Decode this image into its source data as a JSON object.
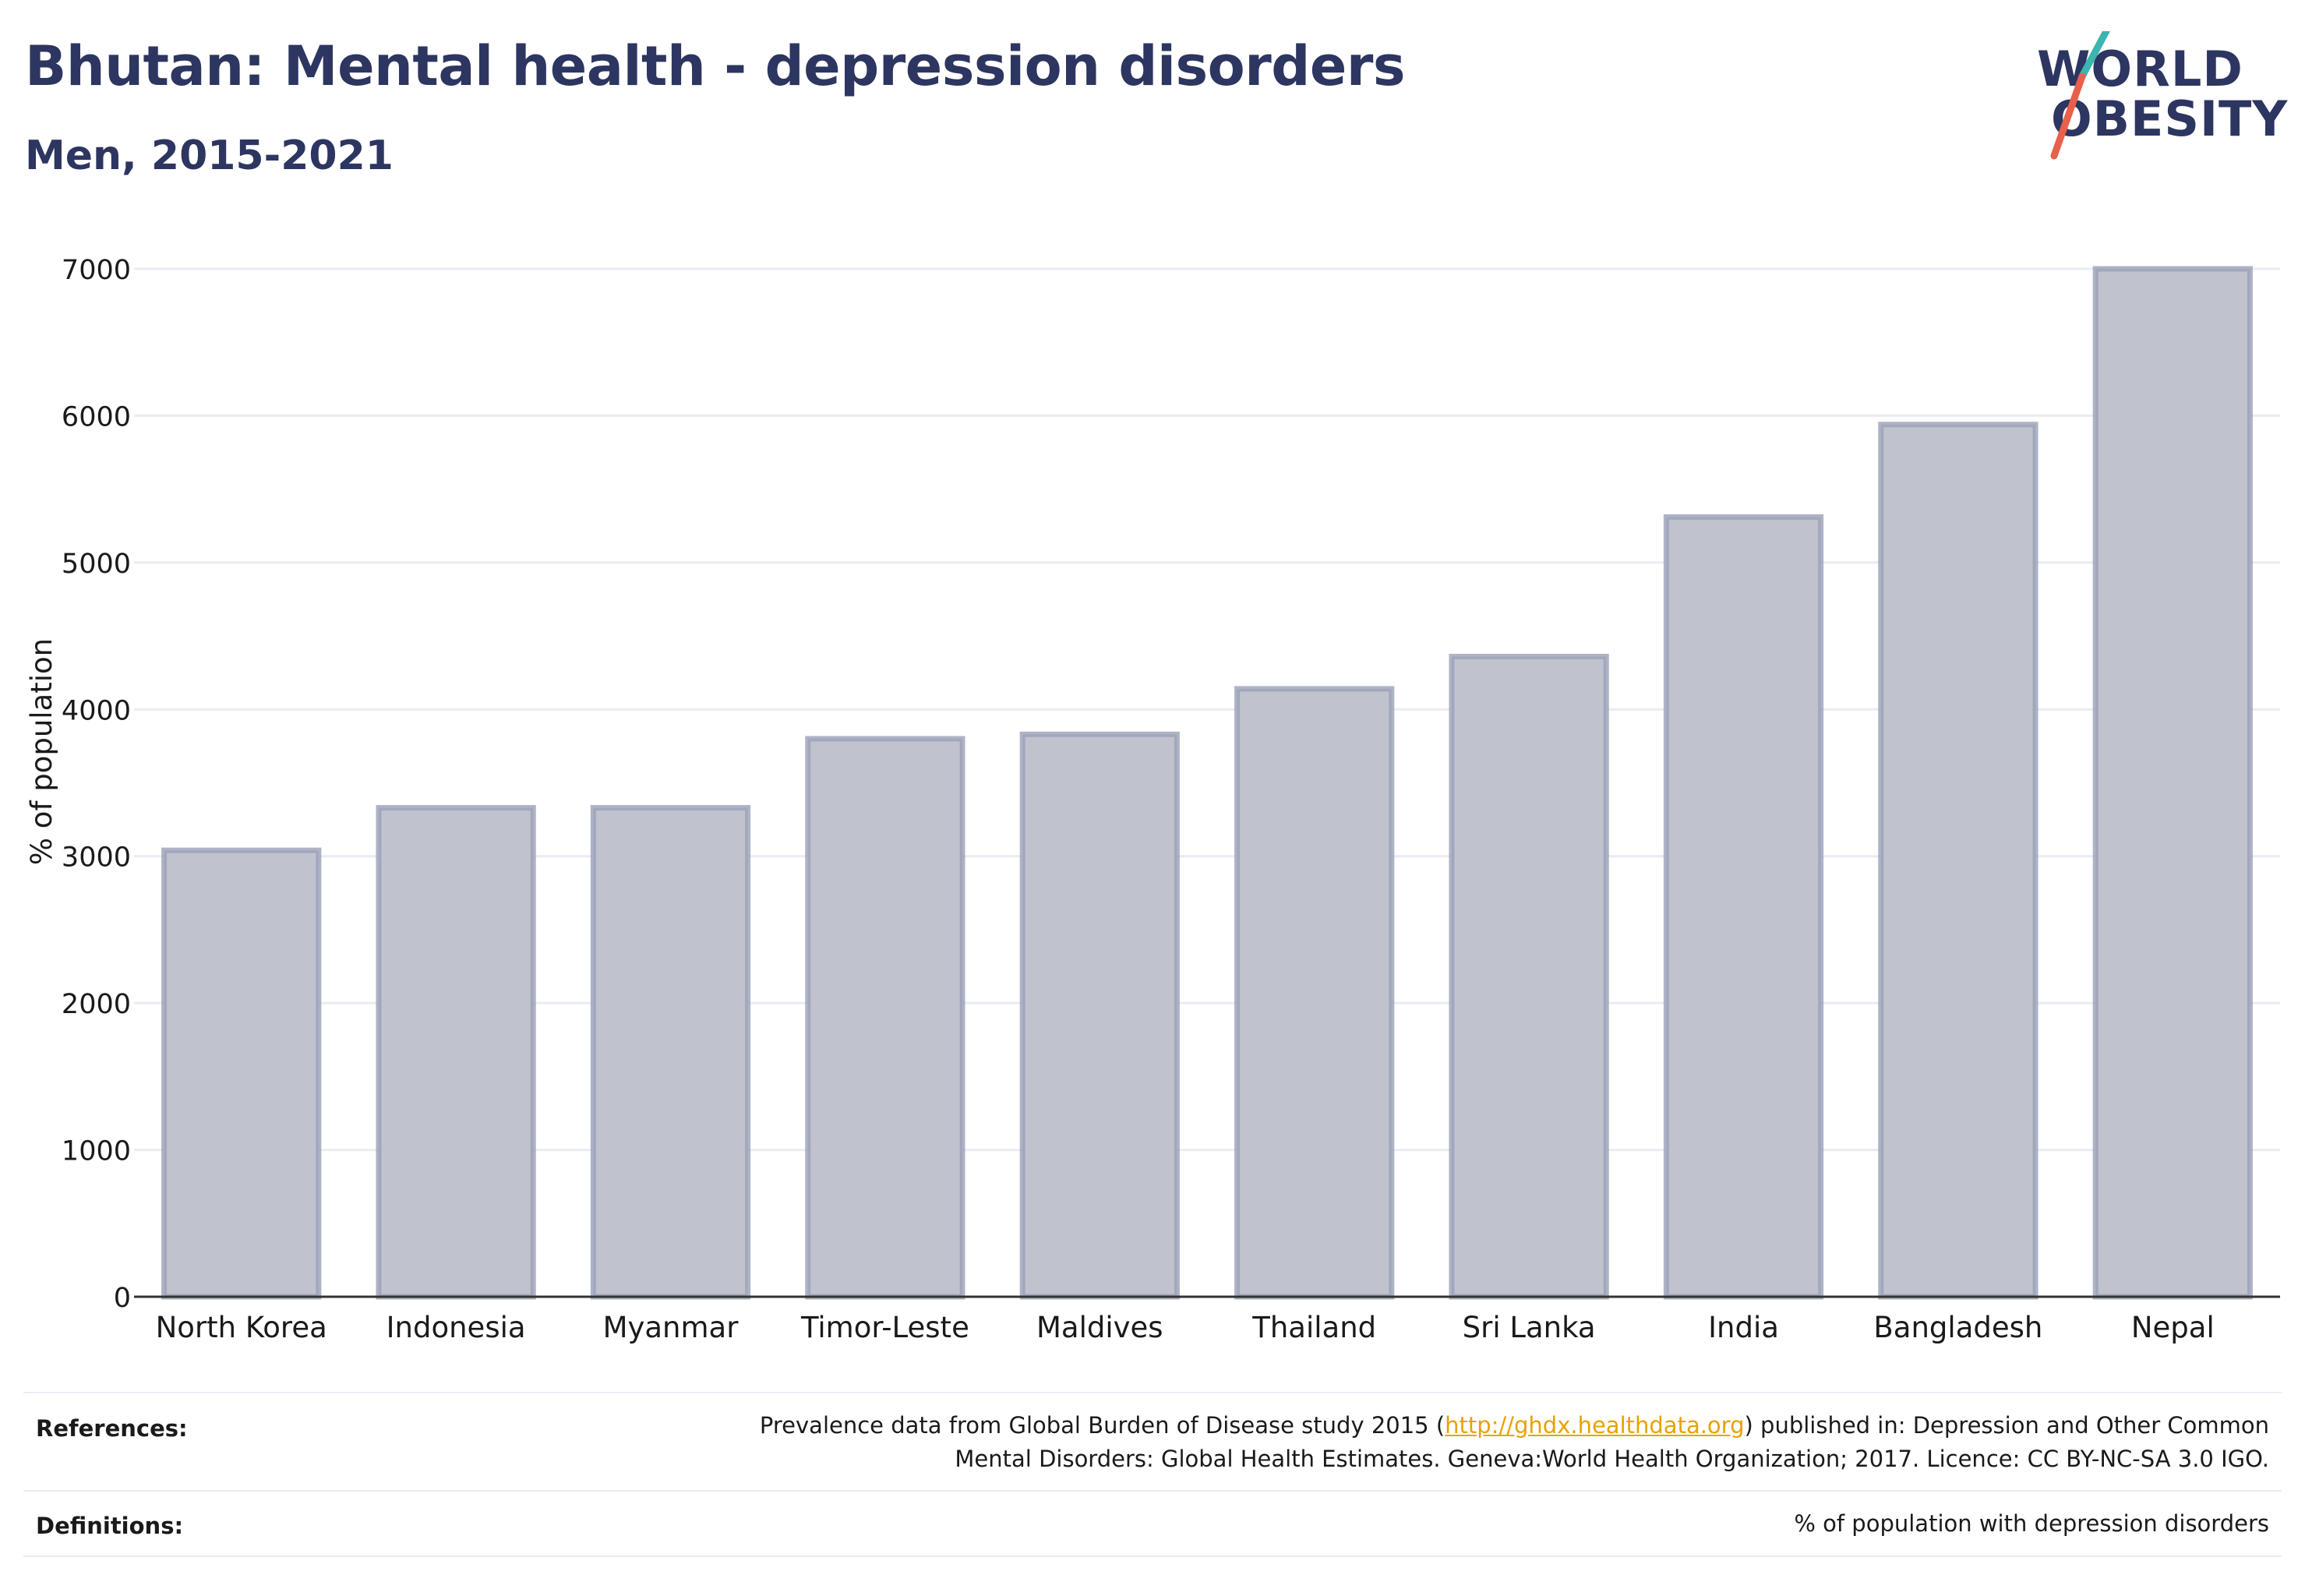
{
  "header": {
    "title": "Bhutan: Mental health - depression disorders",
    "subtitle": "Men, 2015-2021"
  },
  "logo": {
    "line1": "WORLD",
    "line2": "OBESITY",
    "slash_color_top": "#3ab5b0",
    "slash_color_bottom": "#e8604c"
  },
  "chart_data": {
    "type": "bar",
    "title": "",
    "xlabel": "",
    "ylabel": "% of population",
    "categories": [
      "North Korea",
      "Indonesia",
      "Myanmar",
      "Timor-Leste",
      "Maldives",
      "Thailand",
      "Sri Lanka",
      "India",
      "Bangladesh",
      "Nepal"
    ],
    "values": [
      3040,
      3330,
      3330,
      3800,
      3830,
      4140,
      4360,
      5310,
      5940,
      7000
    ],
    "ylim": [
      0,
      7000
    ],
    "yticks": [
      0,
      1000,
      2000,
      3000,
      4000,
      5000,
      6000,
      7000
    ],
    "grid": true,
    "bar_fill": "#c0c3ce",
    "bar_stroke": "#9aa0b8",
    "axis_color": "#333333",
    "grid_color": "#e9ecf3"
  },
  "footer": {
    "references_label": "References:",
    "references_line1_pre": "Prevalence data from Global Burden of Disease study 2015 (",
    "references_link": "http://ghdx.healthdata.org",
    "references_line1_post": ") published in: Depression and Other Common",
    "references_line2": "Mental Disorders: Global Health Estimates. Geneva:World Health Organization; 2017. Licence: CC BY-NC-SA 3.0 IGO.",
    "definitions_label": "Definitions:",
    "definitions_text": "% of population with depression disorders"
  }
}
